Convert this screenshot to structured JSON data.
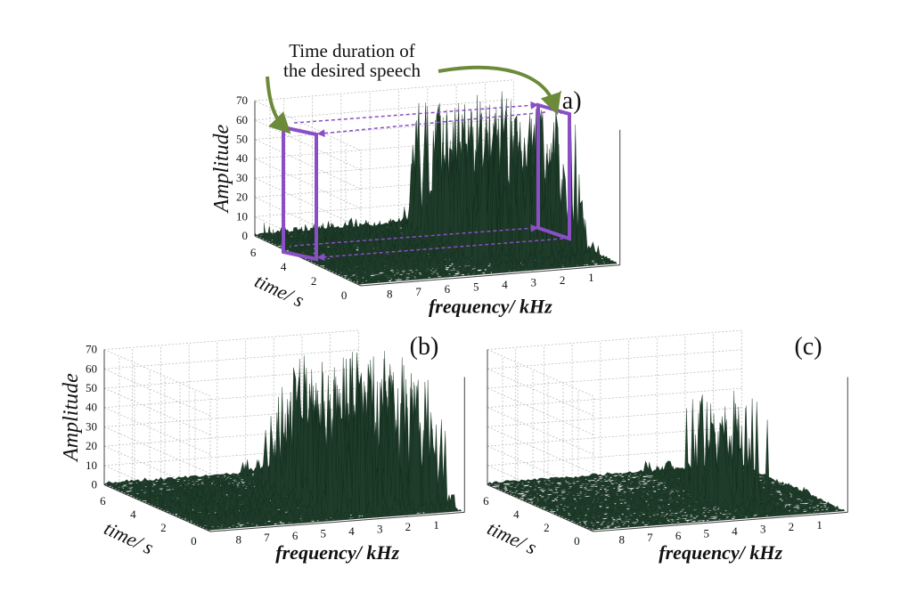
{
  "annotation": {
    "line1": "Time duration of",
    "line2": "the desired speech"
  },
  "panels": [
    {
      "label": "(a)",
      "amplitude_label": "Amplitude",
      "time_label": "time/ s",
      "frequency_label": "frequency/ kHz",
      "amplitude_ticks": [
        0,
        10,
        20,
        30,
        40,
        50,
        60,
        70
      ],
      "time_ticks": [
        6,
        4,
        2,
        0
      ],
      "frequency_ticks": [
        8,
        7,
        6,
        5,
        4,
        3,
        2,
        1
      ]
    },
    {
      "label": "(b)",
      "amplitude_label": "Amplitude",
      "time_label": "time/ s",
      "frequency_label": "frequency/ kHz",
      "amplitude_ticks": [
        0,
        10,
        20,
        30,
        40,
        50,
        60,
        70
      ],
      "time_ticks": [
        6,
        4,
        2,
        0
      ],
      "frequency_ticks": [
        8,
        7,
        6,
        5,
        4,
        3,
        2,
        1
      ]
    },
    {
      "label": "(c)",
      "time_label": "time/ s",
      "frequency_label": "frequency/ kHz",
      "time_ticks": [
        6,
        4,
        2,
        0
      ],
      "frequency_ticks": [
        8,
        7,
        6,
        5,
        4,
        3,
        2,
        1
      ]
    }
  ]
}
